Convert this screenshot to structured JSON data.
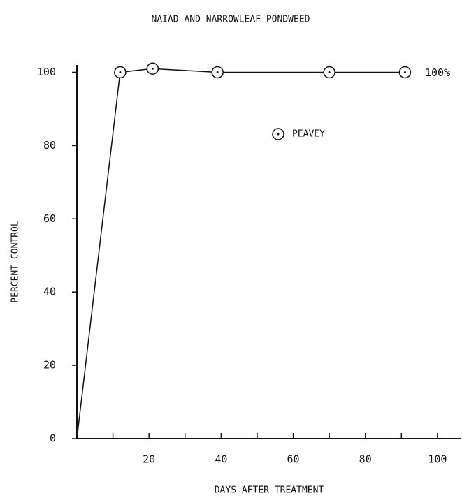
{
  "chart_data": {
    "type": "line",
    "title": "NAIAD AND NARROWLEAF PONDWEED",
    "xlabel": "DAYS AFTER TREATMENT",
    "ylabel": "PERCENT CONTROL",
    "x": [
      0,
      12,
      21,
      39,
      70,
      91
    ],
    "series": [
      {
        "name": "PEAVEY",
        "color": "#111111",
        "values": [
          0,
          100,
          101,
          100,
          100,
          100
        ]
      }
    ],
    "annotations": [
      "100%"
    ],
    "xlim": [
      0,
      107
    ],
    "ylim": [
      0,
      102
    ],
    "xticks": [
      20,
      40,
      60,
      80,
      100
    ],
    "x_minor_ticks": [
      10,
      30,
      50,
      70,
      90
    ],
    "yticks": [
      0,
      20,
      40,
      60,
      80,
      100
    ],
    "grid": false
  }
}
